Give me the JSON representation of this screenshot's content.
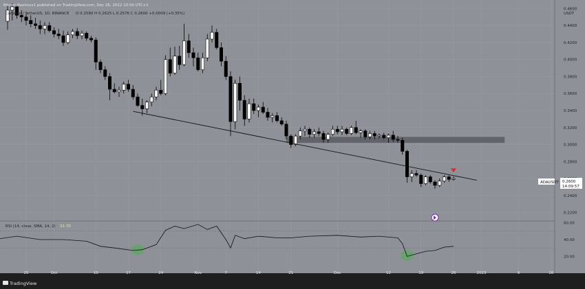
{
  "header": {
    "published": "BitcoinMaximus1 published on TradingView.com, Dec 26, 2022 10:50 UTC+1",
    "symbol": "Cardano / TetherUS, 1D, BINANCE",
    "ohlc": "O 0.2590 H 0.2625 L 0.2576 C 0.2600 +0.0009 (+0.35%)"
  },
  "price_axis": {
    "unit": "USDT",
    "ticks": [
      "0.4600",
      "0.4400",
      "0.4200",
      "0.4000",
      "0.3800",
      "0.3600",
      "0.3400",
      "0.3200",
      "0.3000",
      "0.2800",
      "0.2600",
      "0.2400",
      "0.2200"
    ],
    "symbol_badge": "ADAUSDT",
    "last_price": "0.2600",
    "countdown": "14:09:57"
  },
  "rsi_panel": {
    "label": "RSI (14, close, SMA, 14, 2)",
    "value": "31.70",
    "ticks": [
      "60.00",
      "40.00",
      "20.00"
    ]
  },
  "time_axis": {
    "labels": [
      "25",
      "Oct",
      "10",
      "17",
      "24",
      "Nov",
      "7",
      "14",
      "21",
      "Dec",
      "12",
      "19",
      "26",
      "2023",
      "9",
      "16"
    ]
  },
  "footer": {
    "brand": "TradingView"
  },
  "colors": {
    "plot_bg": "#8f9199",
    "candle_up": "#ffffff",
    "candle_down": "#000000",
    "marker": "#d32f2f",
    "highlight": "#4caf50",
    "zone": "#5a5c63"
  },
  "chart_data": {
    "type": "candlestick",
    "price_ylim": [
      0.21,
      0.47
    ],
    "rsi_ylim": [
      0,
      62
    ],
    "candles": [
      {
        "date": "2022-09-21",
        "o": 0.445,
        "h": 0.463,
        "l": 0.435,
        "c": 0.458
      },
      {
        "date": "2022-09-22",
        "o": 0.458,
        "h": 0.466,
        "l": 0.446,
        "c": 0.462
      },
      {
        "date": "2022-09-23",
        "o": 0.462,
        "h": 0.466,
        "l": 0.448,
        "c": 0.452
      },
      {
        "date": "2022-09-24",
        "o": 0.452,
        "h": 0.458,
        "l": 0.444,
        "c": 0.45
      },
      {
        "date": "2022-09-25",
        "o": 0.45,
        "h": 0.455,
        "l": 0.44,
        "c": 0.446
      },
      {
        "date": "2022-09-26",
        "o": 0.446,
        "h": 0.452,
        "l": 0.438,
        "c": 0.442
      },
      {
        "date": "2022-09-27",
        "o": 0.442,
        "h": 0.449,
        "l": 0.436,
        "c": 0.44
      },
      {
        "date": "2022-09-28",
        "o": 0.44,
        "h": 0.446,
        "l": 0.43,
        "c": 0.436
      },
      {
        "date": "2022-09-29",
        "o": 0.436,
        "h": 0.444,
        "l": 0.43,
        "c": 0.44
      },
      {
        "date": "2022-09-30",
        "o": 0.44,
        "h": 0.444,
        "l": 0.432,
        "c": 0.434
      },
      {
        "date": "2022-10-01",
        "o": 0.434,
        "h": 0.438,
        "l": 0.426,
        "c": 0.43
      },
      {
        "date": "2022-10-02",
        "o": 0.43,
        "h": 0.436,
        "l": 0.424,
        "c": 0.428
      },
      {
        "date": "2022-10-03",
        "o": 0.428,
        "h": 0.434,
        "l": 0.416,
        "c": 0.42
      },
      {
        "date": "2022-10-04",
        "o": 0.42,
        "h": 0.433,
        "l": 0.418,
        "c": 0.429
      },
      {
        "date": "2022-10-05",
        "o": 0.429,
        "h": 0.436,
        "l": 0.425,
        "c": 0.433
      },
      {
        "date": "2022-10-06",
        "o": 0.433,
        "h": 0.437,
        "l": 0.424,
        "c": 0.428
      },
      {
        "date": "2022-10-07",
        "o": 0.428,
        "h": 0.434,
        "l": 0.424,
        "c": 0.431
      },
      {
        "date": "2022-10-08",
        "o": 0.431,
        "h": 0.433,
        "l": 0.422,
        "c": 0.425
      },
      {
        "date": "2022-10-09",
        "o": 0.425,
        "h": 0.428,
        "l": 0.42,
        "c": 0.423
      },
      {
        "date": "2022-10-10",
        "o": 0.423,
        "h": 0.426,
        "l": 0.388,
        "c": 0.397
      },
      {
        "date": "2022-10-11",
        "o": 0.397,
        "h": 0.4,
        "l": 0.384,
        "c": 0.388
      },
      {
        "date": "2022-10-12",
        "o": 0.388,
        "h": 0.392,
        "l": 0.376,
        "c": 0.38
      },
      {
        "date": "2022-10-13",
        "o": 0.38,
        "h": 0.384,
        "l": 0.352,
        "c": 0.365
      },
      {
        "date": "2022-10-14",
        "o": 0.365,
        "h": 0.372,
        "l": 0.36,
        "c": 0.362
      },
      {
        "date": "2022-10-15",
        "o": 0.362,
        "h": 0.368,
        "l": 0.356,
        "c": 0.364
      },
      {
        "date": "2022-10-16",
        "o": 0.364,
        "h": 0.374,
        "l": 0.36,
        "c": 0.371
      },
      {
        "date": "2022-10-17",
        "o": 0.371,
        "h": 0.376,
        "l": 0.362,
        "c": 0.365
      },
      {
        "date": "2022-10-18",
        "o": 0.365,
        "h": 0.37,
        "l": 0.353,
        "c": 0.356
      },
      {
        "date": "2022-10-19",
        "o": 0.356,
        "h": 0.36,
        "l": 0.344,
        "c": 0.346
      },
      {
        "date": "2022-10-20",
        "o": 0.346,
        "h": 0.354,
        "l": 0.334,
        "c": 0.342
      },
      {
        "date": "2022-10-21",
        "o": 0.342,
        "h": 0.352,
        "l": 0.337,
        "c": 0.35
      },
      {
        "date": "2022-10-22",
        "o": 0.35,
        "h": 0.36,
        "l": 0.345,
        "c": 0.356
      },
      {
        "date": "2022-10-23",
        "o": 0.356,
        "h": 0.368,
        "l": 0.352,
        "c": 0.364
      },
      {
        "date": "2022-10-24",
        "o": 0.364,
        "h": 0.376,
        "l": 0.358,
        "c": 0.36
      },
      {
        "date": "2022-10-25",
        "o": 0.36,
        "h": 0.405,
        "l": 0.358,
        "c": 0.4
      },
      {
        "date": "2022-10-26",
        "o": 0.4,
        "h": 0.414,
        "l": 0.38,
        "c": 0.384
      },
      {
        "date": "2022-10-27",
        "o": 0.384,
        "h": 0.415,
        "l": 0.382,
        "c": 0.404
      },
      {
        "date": "2022-10-28",
        "o": 0.404,
        "h": 0.416,
        "l": 0.388,
        "c": 0.394
      },
      {
        "date": "2022-10-29",
        "o": 0.394,
        "h": 0.442,
        "l": 0.392,
        "c": 0.422
      },
      {
        "date": "2022-10-30",
        "o": 0.422,
        "h": 0.43,
        "l": 0.402,
        "c": 0.408
      },
      {
        "date": "2022-10-31",
        "o": 0.408,
        "h": 0.414,
        "l": 0.392,
        "c": 0.402
      },
      {
        "date": "2022-11-01",
        "o": 0.402,
        "h": 0.408,
        "l": 0.386,
        "c": 0.388
      },
      {
        "date": "2022-11-02",
        "o": 0.388,
        "h": 0.408,
        "l": 0.384,
        "c": 0.402
      },
      {
        "date": "2022-11-03",
        "o": 0.402,
        "h": 0.43,
        "l": 0.398,
        "c": 0.424
      },
      {
        "date": "2022-11-04",
        "o": 0.424,
        "h": 0.44,
        "l": 0.42,
        "c": 0.432
      },
      {
        "date": "2022-11-05",
        "o": 0.432,
        "h": 0.436,
        "l": 0.412,
        "c": 0.414
      },
      {
        "date": "2022-11-06",
        "o": 0.414,
        "h": 0.42,
        "l": 0.392,
        "c": 0.398
      },
      {
        "date": "2022-11-07",
        "o": 0.398,
        "h": 0.404,
        "l": 0.376,
        "c": 0.38
      },
      {
        "date": "2022-11-08",
        "o": 0.38,
        "h": 0.386,
        "l": 0.31,
        "c": 0.327
      },
      {
        "date": "2022-11-09",
        "o": 0.327,
        "h": 0.376,
        "l": 0.318,
        "c": 0.372
      },
      {
        "date": "2022-11-10",
        "o": 0.372,
        "h": 0.38,
        "l": 0.34,
        "c": 0.352
      },
      {
        "date": "2022-11-11",
        "o": 0.352,
        "h": 0.358,
        "l": 0.322,
        "c": 0.33
      },
      {
        "date": "2022-11-12",
        "o": 0.33,
        "h": 0.354,
        "l": 0.326,
        "c": 0.348
      },
      {
        "date": "2022-11-13",
        "o": 0.348,
        "h": 0.354,
        "l": 0.336,
        "c": 0.34
      },
      {
        "date": "2022-11-14",
        "o": 0.34,
        "h": 0.347,
        "l": 0.332,
        "c": 0.344
      },
      {
        "date": "2022-11-15",
        "o": 0.344,
        "h": 0.35,
        "l": 0.336,
        "c": 0.338
      },
      {
        "date": "2022-11-16",
        "o": 0.338,
        "h": 0.343,
        "l": 0.328,
        "c": 0.332
      },
      {
        "date": "2022-11-17",
        "o": 0.332,
        "h": 0.337,
        "l": 0.326,
        "c": 0.334
      },
      {
        "date": "2022-11-18",
        "o": 0.334,
        "h": 0.338,
        "l": 0.326,
        "c": 0.328
      },
      {
        "date": "2022-11-19",
        "o": 0.328,
        "h": 0.332,
        "l": 0.322,
        "c": 0.324
      },
      {
        "date": "2022-11-20",
        "o": 0.324,
        "h": 0.328,
        "l": 0.306,
        "c": 0.31
      },
      {
        "date": "2022-11-21",
        "o": 0.31,
        "h": 0.312,
        "l": 0.296,
        "c": 0.3
      },
      {
        "date": "2022-11-22",
        "o": 0.3,
        "h": 0.312,
        "l": 0.298,
        "c": 0.31
      },
      {
        "date": "2022-11-23",
        "o": 0.31,
        "h": 0.32,
        "l": 0.306,
        "c": 0.316
      },
      {
        "date": "2022-11-24",
        "o": 0.316,
        "h": 0.322,
        "l": 0.31,
        "c": 0.318
      },
      {
        "date": "2022-11-25",
        "o": 0.318,
        "h": 0.32,
        "l": 0.308,
        "c": 0.312
      },
      {
        "date": "2022-11-26",
        "o": 0.312,
        "h": 0.318,
        "l": 0.308,
        "c": 0.315
      },
      {
        "date": "2022-11-27",
        "o": 0.315,
        "h": 0.32,
        "l": 0.31,
        "c": 0.313
      },
      {
        "date": "2022-11-28",
        "o": 0.313,
        "h": 0.316,
        "l": 0.302,
        "c": 0.306
      },
      {
        "date": "2022-11-29",
        "o": 0.306,
        "h": 0.314,
        "l": 0.302,
        "c": 0.312
      },
      {
        "date": "2022-11-30",
        "o": 0.312,
        "h": 0.322,
        "l": 0.31,
        "c": 0.318
      },
      {
        "date": "2022-12-01",
        "o": 0.318,
        "h": 0.322,
        "l": 0.312,
        "c": 0.315
      },
      {
        "date": "2022-12-02",
        "o": 0.315,
        "h": 0.322,
        "l": 0.311,
        "c": 0.318
      },
      {
        "date": "2022-12-03",
        "o": 0.318,
        "h": 0.32,
        "l": 0.311,
        "c": 0.313
      },
      {
        "date": "2022-12-04",
        "o": 0.313,
        "h": 0.322,
        "l": 0.311,
        "c": 0.32
      },
      {
        "date": "2022-12-05",
        "o": 0.32,
        "h": 0.328,
        "l": 0.312,
        "c": 0.314
      },
      {
        "date": "2022-12-06",
        "o": 0.314,
        "h": 0.318,
        "l": 0.308,
        "c": 0.316
      },
      {
        "date": "2022-12-07",
        "o": 0.316,
        "h": 0.318,
        "l": 0.306,
        "c": 0.309
      },
      {
        "date": "2022-12-08",
        "o": 0.309,
        "h": 0.316,
        "l": 0.306,
        "c": 0.313
      },
      {
        "date": "2022-12-09",
        "o": 0.313,
        "h": 0.316,
        "l": 0.306,
        "c": 0.31
      },
      {
        "date": "2022-12-10",
        "o": 0.31,
        "h": 0.313,
        "l": 0.307,
        "c": 0.311
      },
      {
        "date": "2022-12-11",
        "o": 0.311,
        "h": 0.314,
        "l": 0.306,
        "c": 0.308
      },
      {
        "date": "2022-12-12",
        "o": 0.308,
        "h": 0.313,
        "l": 0.302,
        "c": 0.311
      },
      {
        "date": "2022-12-13",
        "o": 0.311,
        "h": 0.316,
        "l": 0.303,
        "c": 0.306
      },
      {
        "date": "2022-12-14",
        "o": 0.306,
        "h": 0.31,
        "l": 0.302,
        "c": 0.305
      },
      {
        "date": "2022-12-15",
        "o": 0.305,
        "h": 0.308,
        "l": 0.288,
        "c": 0.292
      },
      {
        "date": "2022-12-16",
        "o": 0.292,
        "h": 0.294,
        "l": 0.255,
        "c": 0.262
      },
      {
        "date": "2022-12-17",
        "o": 0.262,
        "h": 0.27,
        "l": 0.256,
        "c": 0.266
      },
      {
        "date": "2022-12-18",
        "o": 0.266,
        "h": 0.27,
        "l": 0.262,
        "c": 0.264
      },
      {
        "date": "2022-12-19",
        "o": 0.264,
        "h": 0.266,
        "l": 0.25,
        "c": 0.254
      },
      {
        "date": "2022-12-20",
        "o": 0.254,
        "h": 0.264,
        "l": 0.252,
        "c": 0.262
      },
      {
        "date": "2022-12-21",
        "o": 0.262,
        "h": 0.264,
        "l": 0.254,
        "c": 0.256
      },
      {
        "date": "2022-12-22",
        "o": 0.256,
        "h": 0.258,
        "l": 0.248,
        "c": 0.252
      },
      {
        "date": "2022-12-23",
        "o": 0.252,
        "h": 0.26,
        "l": 0.25,
        "c": 0.257
      },
      {
        "date": "2022-12-24",
        "o": 0.257,
        "h": 0.264,
        "l": 0.255,
        "c": 0.262
      },
      {
        "date": "2022-12-25",
        "o": 0.262,
        "h": 0.264,
        "l": 0.256,
        "c": 0.259
      },
      {
        "date": "2022-12-26",
        "o": 0.259,
        "h": 0.2625,
        "l": 0.2576,
        "c": 0.26
      }
    ],
    "trendline": {
      "from": {
        "date": "2022-10-18",
        "price": 0.339
      },
      "to": {
        "date": "2022-12-31",
        "price": 0.258
      }
    },
    "resistance_zone": {
      "from": "2022-11-20",
      "to": "2023-01-06",
      "low": 0.302,
      "high": 0.309
    },
    "resistance_marker": {
      "date": "2022-12-26",
      "price": 0.2695
    },
    "rsi": {
      "dates": [
        "2022-09-18",
        "2022-09-23",
        "2022-09-28",
        "2022-10-03",
        "2022-10-08",
        "2022-10-11",
        "2022-10-14",
        "2022-10-18",
        "2022-10-20",
        "2022-10-23",
        "2022-10-25",
        "2022-10-27",
        "2022-10-29",
        "2022-11-01",
        "2022-11-03",
        "2022-11-05",
        "2022-11-07",
        "2022-11-08",
        "2022-11-09",
        "2022-11-11",
        "2022-11-14",
        "2022-11-18",
        "2022-11-21",
        "2022-11-25",
        "2022-12-01",
        "2022-12-06",
        "2022-12-10",
        "2022-12-14",
        "2022-12-15",
        "2022-12-16",
        "2022-12-18",
        "2022-12-20",
        "2022-12-22",
        "2022-12-24",
        "2022-12-26"
      ],
      "values": [
        40,
        44,
        40,
        40,
        38,
        32,
        30,
        27,
        28,
        34,
        51,
        56,
        53,
        58,
        52,
        56,
        40,
        30,
        45,
        41,
        44,
        42,
        42,
        44,
        45,
        43,
        44,
        42,
        35,
        20,
        23,
        26,
        27,
        31,
        32
      ]
    },
    "rsi_highlights": [
      {
        "date": "2022-10-19",
        "value": 28
      },
      {
        "date": "2022-12-16",
        "value": 21
      }
    ]
  }
}
